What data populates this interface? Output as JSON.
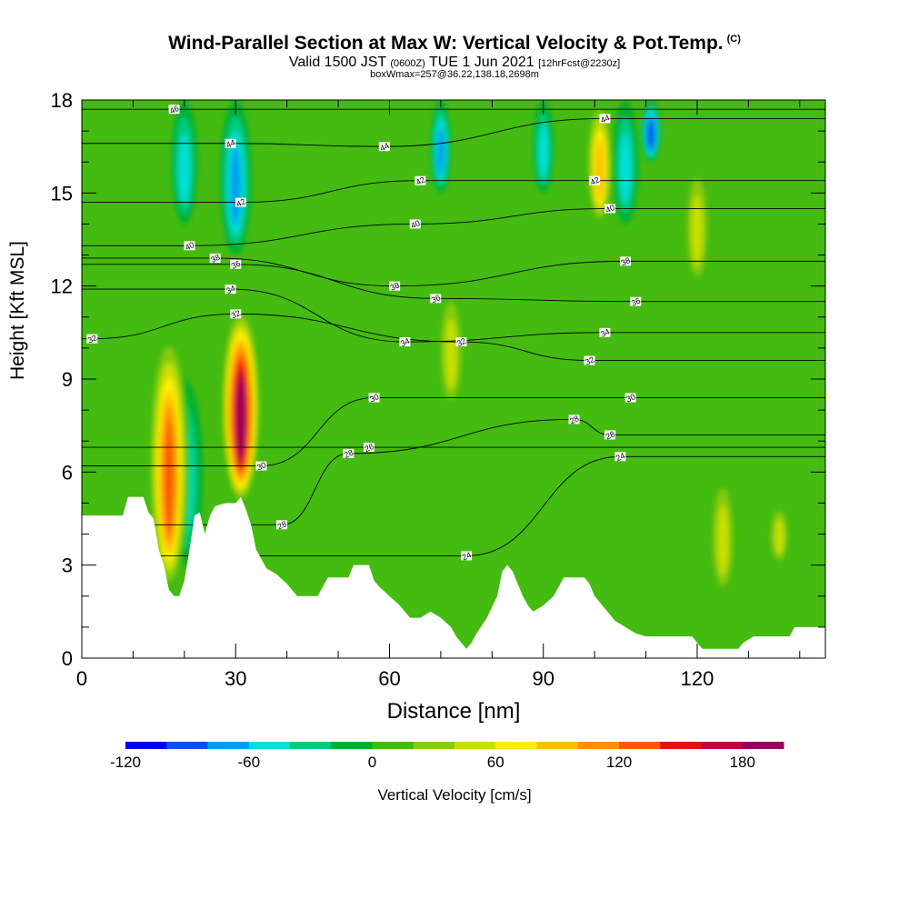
{
  "header": {
    "title": "Wind-Parallel Section at Max W: Vertical Velocity & Pot.Temp.",
    "title_mark": "(C)",
    "subtitle_main": "Valid 1500 JST",
    "subtitle_utc": "(0600Z)",
    "subtitle_date": "TUE 1 Jun 2021",
    "subtitle_fcst": "[12hrFcst@2230z]",
    "subtitle2": "boxWmax=257@36.22,138.18,2698m"
  },
  "colors": {
    "palette": [
      "#0000f0",
      "#0050f0",
      "#00a0f0",
      "#00e0d8",
      "#00cc80",
      "#00b030",
      "#44bb10",
      "#88cc10",
      "#c8e000",
      "#ffee00",
      "#ffc000",
      "#ff9000",
      "#ff5800",
      "#e81010",
      "#c00040",
      "#900060",
      "#500080"
    ],
    "terrain": "#ffffff",
    "contour": "#000000"
  },
  "chart_data": {
    "type": "heatmap",
    "xlabel": "Distance [nm]",
    "ylabel": "Height [Kft MSL]",
    "xlim": [
      0,
      145
    ],
    "ylim": [
      0,
      18
    ],
    "xticks": [
      0,
      30,
      60,
      90,
      120
    ],
    "yticks": [
      0,
      3,
      6,
      9,
      12,
      15,
      18
    ],
    "colorbar": {
      "label": "Vertical Velocity [cm/s]",
      "range": [
        -120,
        200
      ],
      "step": 20,
      "ticks": [
        -120,
        -60,
        0,
        60,
        120,
        180
      ]
    },
    "terrain_top_kft": [
      [
        0,
        4.6
      ],
      [
        8,
        4.6
      ],
      [
        9,
        5.2
      ],
      [
        12,
        5.2
      ],
      [
        13,
        4.7
      ],
      [
        14,
        4.5
      ],
      [
        15,
        3.5
      ],
      [
        16,
        3.0
      ],
      [
        17,
        2.2
      ],
      [
        18,
        2.0
      ],
      [
        19,
        2.0
      ],
      [
        20,
        2.5
      ],
      [
        21,
        3.5
      ],
      [
        22,
        4.6
      ],
      [
        23,
        4.7
      ],
      [
        24,
        4.0
      ],
      [
        25,
        4.6
      ],
      [
        26,
        4.9
      ],
      [
        28,
        5.0
      ],
      [
        30,
        5.0
      ],
      [
        31,
        5.2
      ],
      [
        32,
        4.8
      ],
      [
        33,
        4.3
      ],
      [
        34,
        3.5
      ],
      [
        36,
        2.9
      ],
      [
        38,
        2.7
      ],
      [
        40,
        2.4
      ],
      [
        41,
        2.2
      ],
      [
        42,
        2.0
      ],
      [
        46,
        2.0
      ],
      [
        47,
        2.3
      ],
      [
        48,
        2.6
      ],
      [
        52,
        2.6
      ],
      [
        53,
        3.0
      ],
      [
        56,
        3.0
      ],
      [
        57,
        2.5
      ],
      [
        58,
        2.3
      ],
      [
        60,
        2.0
      ],
      [
        62,
        1.7
      ],
      [
        63,
        1.5
      ],
      [
        64,
        1.3
      ],
      [
        66,
        1.3
      ],
      [
        68,
        1.5
      ],
      [
        70,
        1.3
      ],
      [
        72,
        1.0
      ],
      [
        73,
        0.7
      ],
      [
        74,
        0.5
      ],
      [
        75,
        0.3
      ],
      [
        76,
        0.5
      ],
      [
        77,
        0.8
      ],
      [
        79,
        1.3
      ],
      [
        81,
        2.0
      ],
      [
        82,
        2.8
      ],
      [
        83,
        3.0
      ],
      [
        84,
        2.8
      ],
      [
        85,
        2.4
      ],
      [
        86,
        2.0
      ],
      [
        87,
        1.7
      ],
      [
        88,
        1.5
      ],
      [
        90,
        1.7
      ],
      [
        92,
        2.0
      ],
      [
        93,
        2.3
      ],
      [
        94,
        2.6
      ],
      [
        98,
        2.6
      ],
      [
        99,
        2.4
      ],
      [
        100,
        2.0
      ],
      [
        102,
        1.6
      ],
      [
        104,
        1.2
      ],
      [
        106,
        1.0
      ],
      [
        108,
        0.8
      ],
      [
        110,
        0.7
      ],
      [
        119,
        0.7
      ],
      [
        120,
        0.5
      ],
      [
        121,
        0.3
      ],
      [
        128,
        0.3
      ],
      [
        129,
        0.5
      ],
      [
        131,
        0.7
      ],
      [
        138,
        0.7
      ],
      [
        139,
        1.0
      ],
      [
        145,
        1.0
      ]
    ],
    "updrafts": [
      {
        "x": 17,
        "base_kft": 2.2,
        "top_kft": 10.5,
        "max_w_cms": 140
      },
      {
        "x": 31,
        "base_kft": 5.0,
        "top_kft": 11.3,
        "max_w_cms": 200
      },
      {
        "x": 72,
        "base_kft": 8.0,
        "top_kft": 12.0,
        "max_w_cms": 60
      },
      {
        "x": 101,
        "base_kft": 14.0,
        "top_kft": 18.0,
        "max_w_cms": 100
      },
      {
        "x": 120,
        "base_kft": 12.0,
        "top_kft": 16.0,
        "max_w_cms": 60
      },
      {
        "x": 125,
        "base_kft": 2.0,
        "top_kft": 6.0,
        "max_w_cms": 60
      },
      {
        "x": 136,
        "base_kft": 3.0,
        "top_kft": 5.0,
        "max_w_cms": 60
      }
    ],
    "downdrafts": [
      {
        "x": 20,
        "base_kft": 3.0,
        "top_kft": 9.0,
        "min_w_cms": -60
      },
      {
        "x": 20,
        "base_kft": 14.0,
        "top_kft": 18.0,
        "min_w_cms": -60
      },
      {
        "x": 30,
        "base_kft": 13.0,
        "top_kft": 18.0,
        "min_w_cms": -80
      },
      {
        "x": 70,
        "base_kft": 15.0,
        "top_kft": 18.0,
        "min_w_cms": -80
      },
      {
        "x": 90,
        "base_kft": 15.0,
        "top_kft": 18.0,
        "min_w_cms": -60
      },
      {
        "x": 106,
        "base_kft": 14.0,
        "top_kft": 18.0,
        "min_w_cms": -60
      },
      {
        "x": 111,
        "base_kft": 16.0,
        "top_kft": 18.0,
        "min_w_cms": -100
      }
    ],
    "contours": {
      "quantity": "potential temperature",
      "labels": [
        {
          "text": "46",
          "x": 18,
          "y": 17.7
        },
        {
          "text": "44",
          "x": 29,
          "y": 16.6
        },
        {
          "text": "44",
          "x": 59,
          "y": 16.5
        },
        {
          "text": "44",
          "x": 102,
          "y": 17.4
        },
        {
          "text": "42",
          "x": 31,
          "y": 14.7
        },
        {
          "text": "42",
          "x": 66,
          "y": 15.4
        },
        {
          "text": "42",
          "x": 100,
          "y": 15.4
        },
        {
          "text": "40",
          "x": 21,
          "y": 13.3
        },
        {
          "text": "40",
          "x": 65,
          "y": 14.0
        },
        {
          "text": "40",
          "x": 103,
          "y": 14.5
        },
        {
          "text": "38",
          "x": 26,
          "y": 12.9
        },
        {
          "text": "38",
          "x": 61,
          "y": 12.0
        },
        {
          "text": "38",
          "x": 106,
          "y": 12.8
        },
        {
          "text": "36",
          "x": 30,
          "y": 12.7
        },
        {
          "text": "36",
          "x": 69,
          "y": 11.6
        },
        {
          "text": "36",
          "x": 108,
          "y": 11.5
        },
        {
          "text": "34",
          "x": 29,
          "y": 11.9
        },
        {
          "text": "34",
          "x": 63,
          "y": 10.2
        },
        {
          "text": "34",
          "x": 102,
          "y": 10.5
        },
        {
          "text": "32",
          "x": 2,
          "y": 10.3
        },
        {
          "text": "32",
          "x": 30,
          "y": 11.1
        },
        {
          "text": "32",
          "x": 74,
          "y": 10.2
        },
        {
          "text": "32",
          "x": 99,
          "y": 9.6
        },
        {
          "text": "30",
          "x": 57,
          "y": 8.4
        },
        {
          "text": "30",
          "x": 107,
          "y": 8.4
        },
        {
          "text": "30",
          "x": 35,
          "y": 6.2
        },
        {
          "text": "28",
          "x": 52,
          "y": 6.6
        },
        {
          "text": "28",
          "x": 96,
          "y": 7.7
        },
        {
          "text": "28",
          "x": 103,
          "y": 7.2
        },
        {
          "text": "26",
          "x": 56,
          "y": 6.8
        },
        {
          "text": "24",
          "x": 105,
          "y": 6.5
        },
        {
          "text": "28",
          "x": 39,
          "y": 4.3
        },
        {
          "text": "24",
          "x": 75,
          "y": 3.3
        }
      ]
    }
  }
}
